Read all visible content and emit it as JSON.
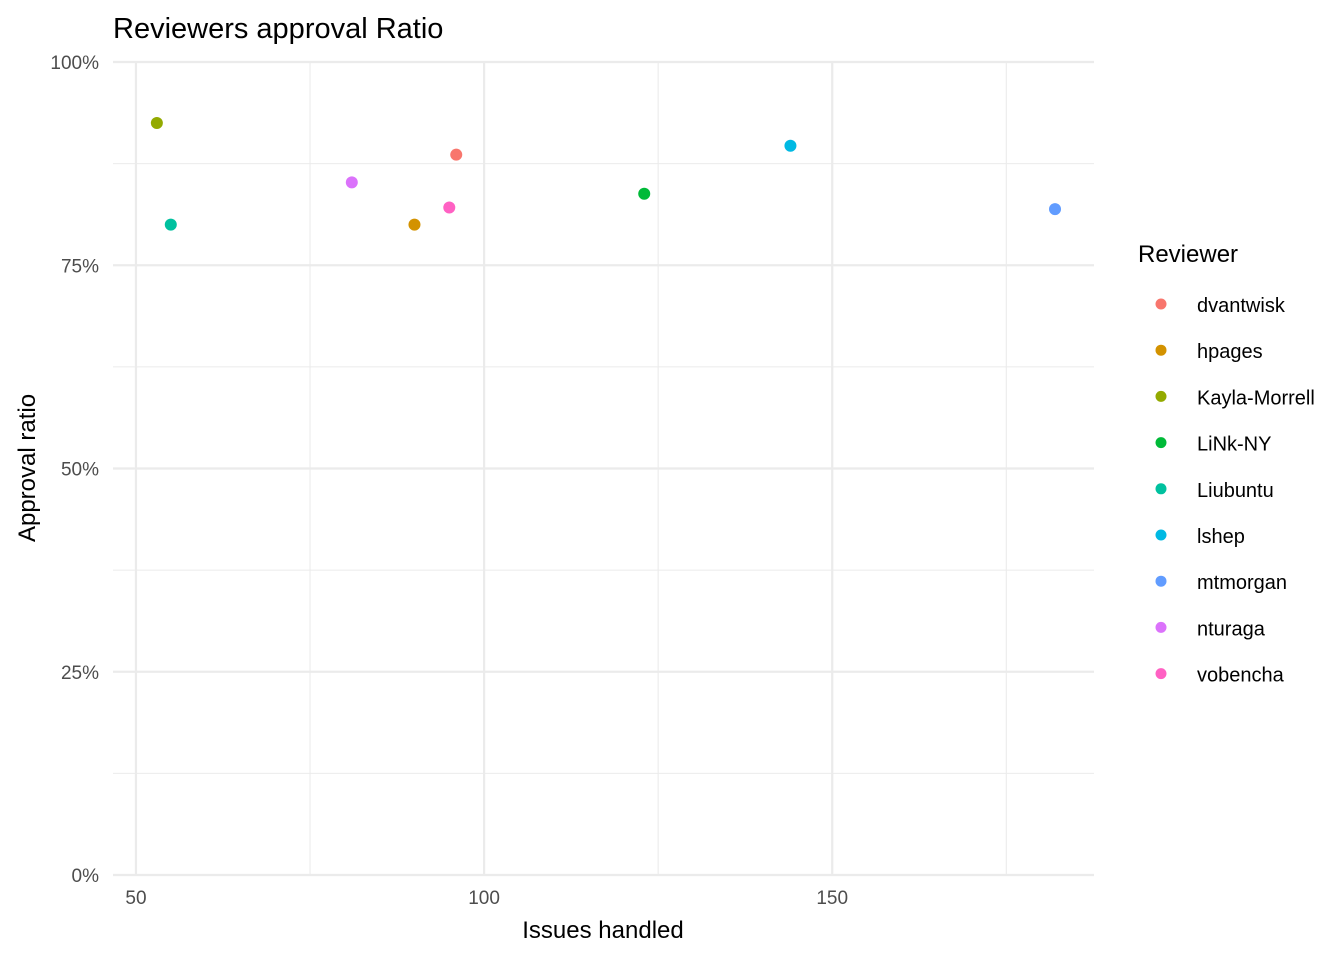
{
  "chart_data": {
    "type": "scatter",
    "title": "Reviewers approval Ratio",
    "xlabel": "Issues handled",
    "ylabel": "Approval ratio",
    "xlim": [
      46.7,
      187.6
    ],
    "ylim": [
      0,
      1
    ],
    "x_ticks": [
      {
        "value": 50,
        "label": "50"
      },
      {
        "value": 100,
        "label": "100"
      },
      {
        "value": 150,
        "label": "150"
      }
    ],
    "x_minor_ticks": [
      75,
      125,
      175
    ],
    "y_ticks": [
      {
        "value": 0,
        "label": "0%"
      },
      {
        "value": 0.25,
        "label": "25%"
      },
      {
        "value": 0.5,
        "label": "50%"
      },
      {
        "value": 0.75,
        "label": "75%"
      },
      {
        "value": 1,
        "label": "100%"
      }
    ],
    "y_minor_ticks": [
      0.125,
      0.375,
      0.625,
      0.875
    ],
    "grid": true,
    "legend": {
      "title": "Reviewer",
      "position": "right"
    },
    "series": [
      {
        "name": "dvantwisk",
        "color": "#F8766D",
        "x": 96,
        "y": 0.886
      },
      {
        "name": "hpages",
        "color": "#D39200",
        "x": 90,
        "y": 0.8
      },
      {
        "name": "Kayla-Morrell",
        "color": "#93AA00",
        "x": 53,
        "y": 0.925
      },
      {
        "name": "LiNk-NY",
        "color": "#00BA38",
        "x": 123,
        "y": 0.838
      },
      {
        "name": "Liubuntu",
        "color": "#00C19F",
        "x": 55,
        "y": 0.8
      },
      {
        "name": "lshep",
        "color": "#00B9E3",
        "x": 144,
        "y": 0.897
      },
      {
        "name": "mtmorgan",
        "color": "#619CFF",
        "x": 182,
        "y": 0.819
      },
      {
        "name": "nturaga",
        "color": "#DB72FB",
        "x": 81,
        "y": 0.852
      },
      {
        "name": "vobencha",
        "color": "#FF61C3",
        "x": 95,
        "y": 0.821
      }
    ]
  }
}
